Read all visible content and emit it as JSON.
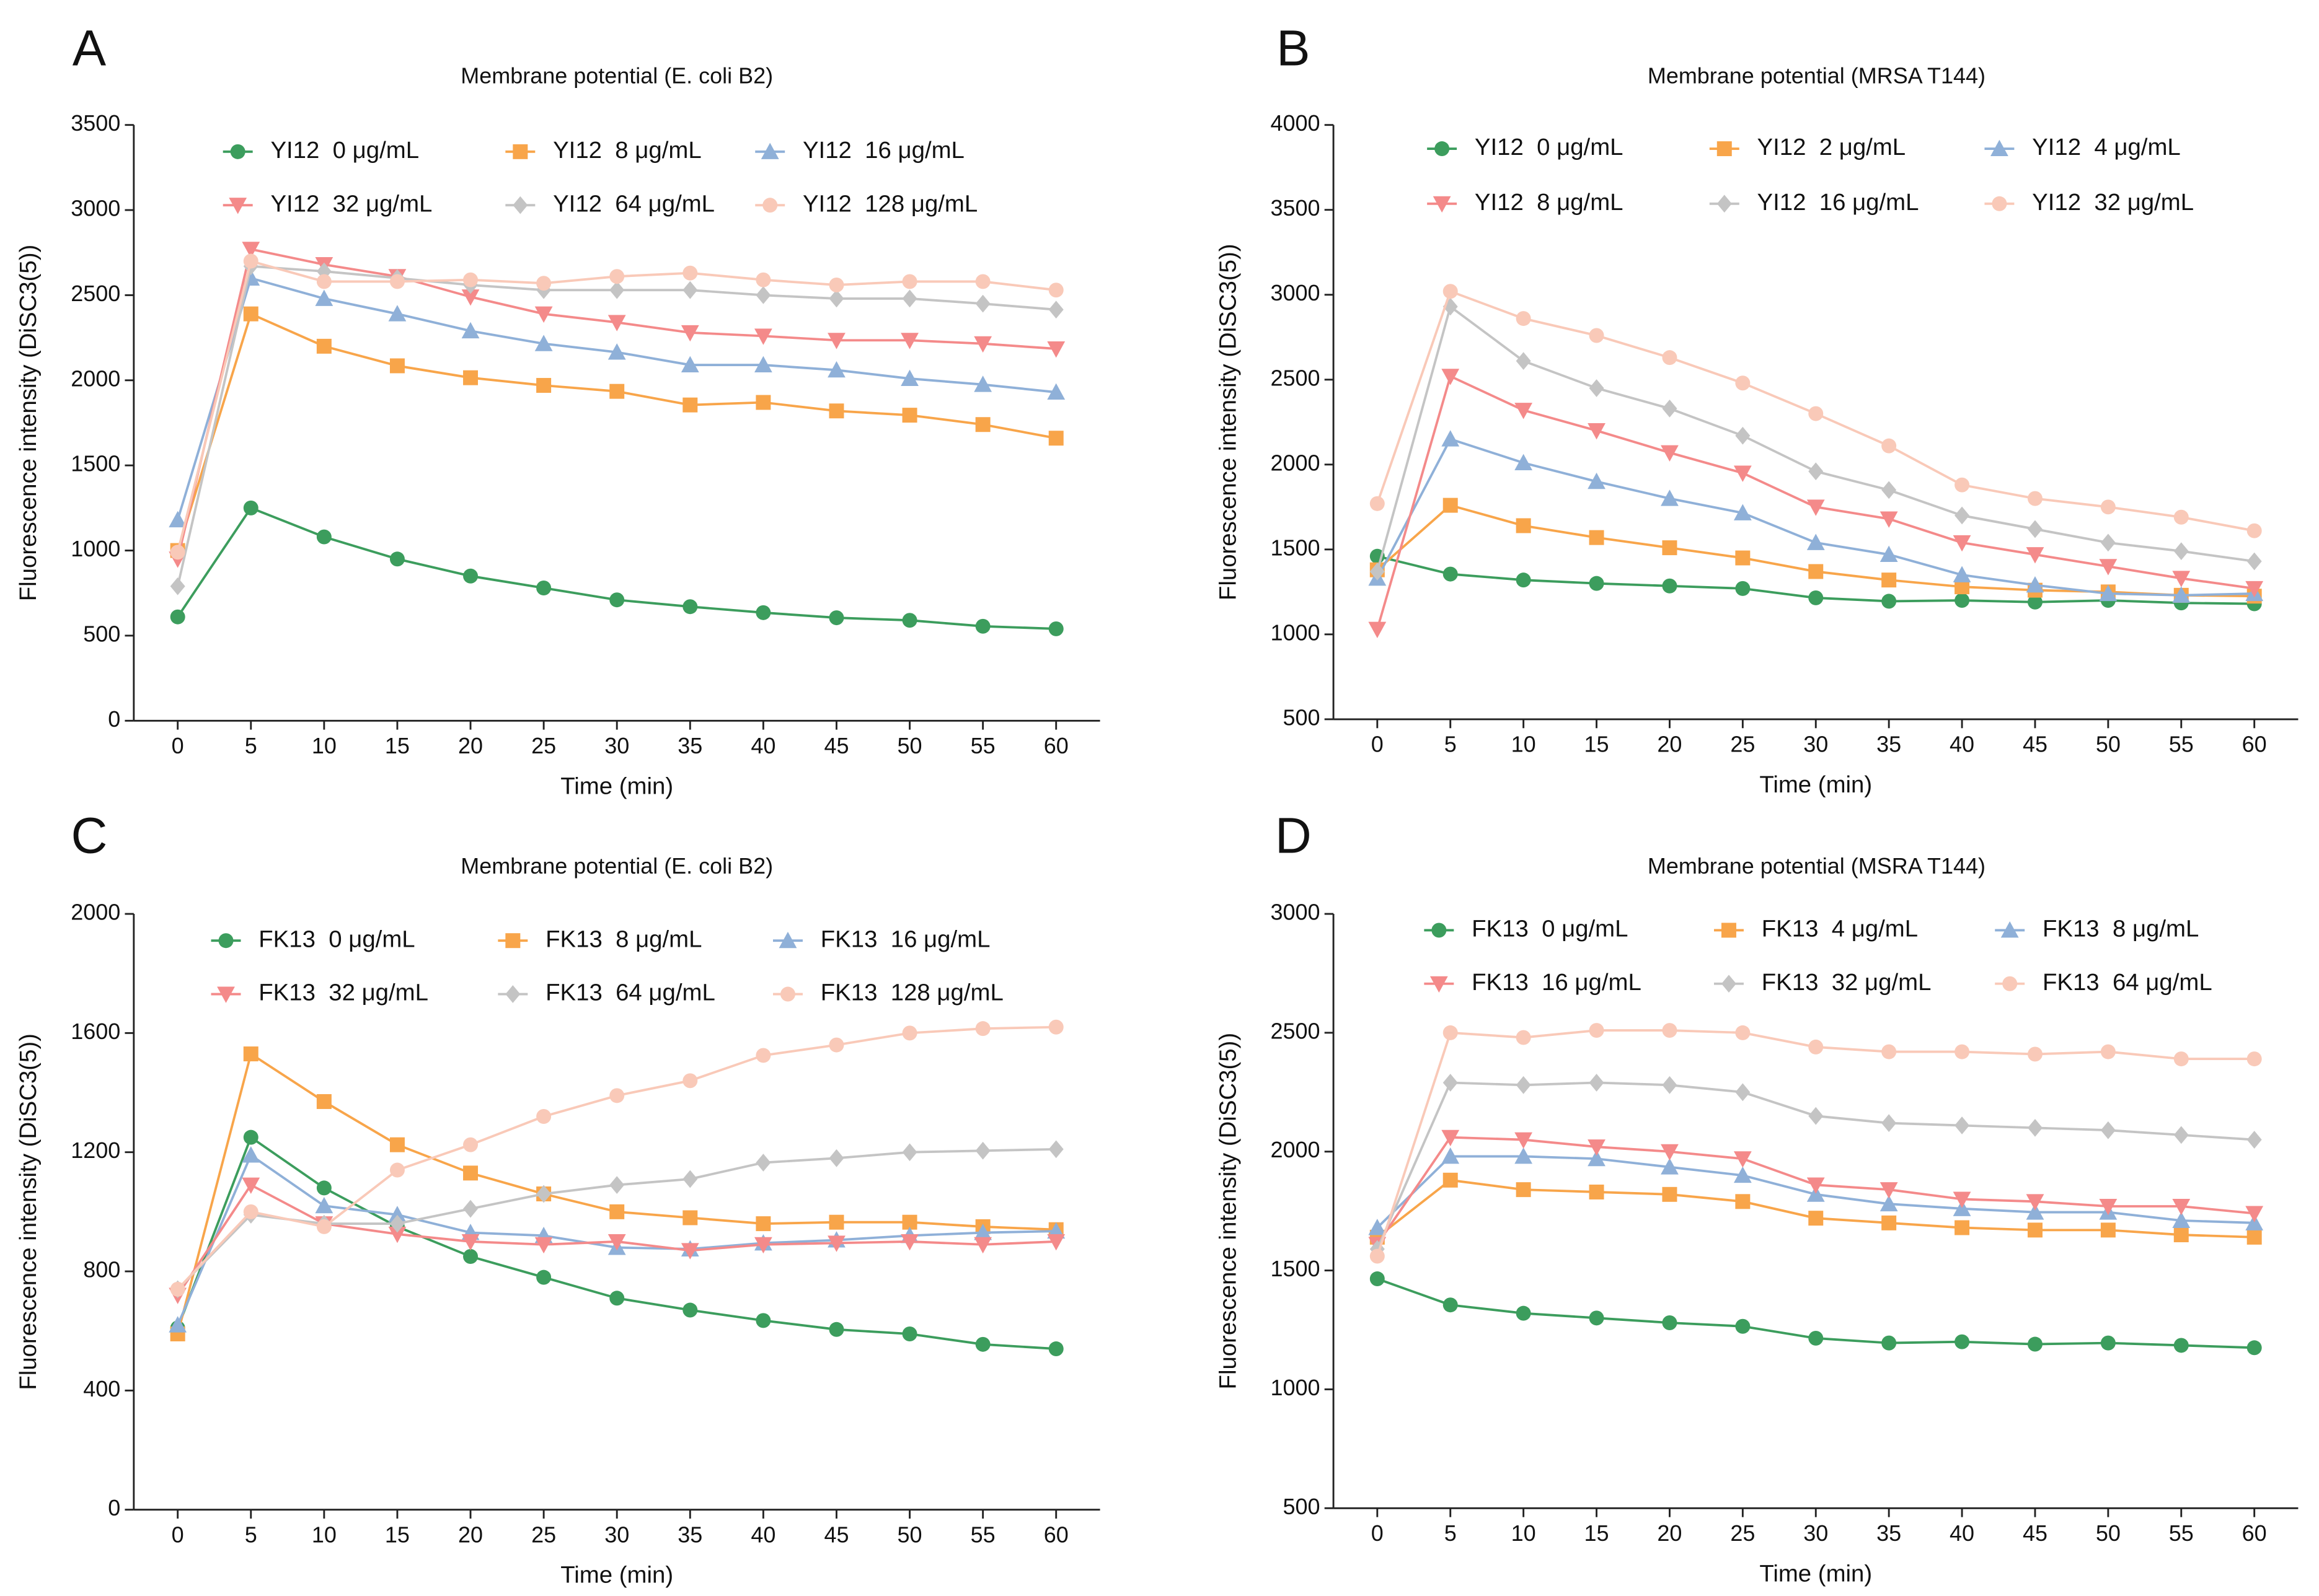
{
  "chart_data": [
    {
      "type": "line",
      "panel": "A",
      "title": "Membrane potential (E. coli B2)",
      "x_label": "Time (min)",
      "y_label": "Fluorescence intensity (DiSC3(5))",
      "x": [
        0,
        5,
        10,
        15,
        20,
        25,
        30,
        35,
        40,
        45,
        50,
        55,
        60
      ],
      "xlim": [
        -3,
        63
      ],
      "xticks": [
        0,
        5,
        10,
        15,
        20,
        25,
        30,
        35,
        40,
        45,
        50,
        55,
        60
      ],
      "ylim": [
        0,
        3500
      ],
      "yticks": [
        0,
        500,
        1000,
        1500,
        2000,
        2500,
        3000,
        3500
      ],
      "series": [
        {
          "name": "YI12  0 μg/mL",
          "color": "#3c9d5d",
          "marker": "circle",
          "values": [
            610,
            1250,
            1080,
            950,
            850,
            780,
            710,
            670,
            635,
            605,
            590,
            555,
            540
          ]
        },
        {
          "name": "YI12  8 μg/mL",
          "color": "#f8a54a",
          "marker": "square",
          "values": [
            1000,
            2390,
            2200,
            2085,
            2015,
            1970,
            1935,
            1855,
            1870,
            1820,
            1795,
            1740,
            1660
          ]
        },
        {
          "name": "YI12  16 μg/mL",
          "color": "#8fb0d8",
          "marker": "triangle-up",
          "values": [
            1180,
            2600,
            2480,
            2390,
            2290,
            2215,
            2165,
            2090,
            2090,
            2060,
            2010,
            1975,
            1930
          ]
        },
        {
          "name": "YI12  32 μg/mL",
          "color": "#f48a8a",
          "marker": "triangle-down",
          "values": [
            950,
            2770,
            2680,
            2610,
            2490,
            2390,
            2340,
            2280,
            2260,
            2235,
            2235,
            2215,
            2185
          ]
        },
        {
          "name": "YI12  64 μg/mL",
          "color": "#c4c4c4",
          "marker": "diamond",
          "values": [
            790,
            2670,
            2640,
            2600,
            2560,
            2530,
            2530,
            2530,
            2500,
            2480,
            2480,
            2450,
            2415
          ]
        },
        {
          "name": "YI12  128 μg/mL",
          "color": "#f9c9b8",
          "marker": "circle",
          "values": [
            990,
            2700,
            2580,
            2580,
            2590,
            2570,
            2610,
            2630,
            2590,
            2560,
            2580,
            2580,
            2530
          ]
        }
      ]
    },
    {
      "type": "line",
      "panel": "B",
      "title": "Membrane potential (MRSA T144)",
      "x_label": "Time (min)",
      "y_label": "Fluorescence intensity (DiSC3(5))",
      "x": [
        0,
        5,
        10,
        15,
        20,
        25,
        30,
        35,
        40,
        45,
        50,
        55,
        60
      ],
      "xlim": [
        -3,
        63
      ],
      "xticks": [
        0,
        5,
        10,
        15,
        20,
        25,
        30,
        35,
        40,
        45,
        50,
        55,
        60
      ],
      "ylim": [
        500,
        4000
      ],
      "yticks": [
        500,
        1000,
        1500,
        2000,
        2500,
        3000,
        3500,
        4000
      ],
      "series": [
        {
          "name": "YI12  0 μg/mL",
          "color": "#3c9d5d",
          "marker": "circle",
          "values": [
            1460,
            1355,
            1320,
            1300,
            1285,
            1270,
            1215,
            1195,
            1200,
            1190,
            1200,
            1185,
            1180
          ]
        },
        {
          "name": "YI12  2 μg/mL",
          "color": "#f8a54a",
          "marker": "square",
          "values": [
            1380,
            1760,
            1640,
            1570,
            1510,
            1450,
            1370,
            1320,
            1280,
            1260,
            1250,
            1230,
            1225
          ]
        },
        {
          "name": "YI12  4 μg/mL",
          "color": "#8fb0d8",
          "marker": "triangle-up",
          "values": [
            1330,
            2150,
            2010,
            1900,
            1800,
            1715,
            1540,
            1470,
            1350,
            1290,
            1240,
            1230,
            1240
          ]
        },
        {
          "name": "YI12  8 μg/mL",
          "color": "#f48a8a",
          "marker": "triangle-down",
          "values": [
            1030,
            2520,
            2320,
            2200,
            2070,
            1950,
            1750,
            1680,
            1540,
            1470,
            1400,
            1330,
            1270
          ]
        },
        {
          "name": "YI12  16 μg/mL",
          "color": "#c4c4c4",
          "marker": "diamond",
          "values": [
            1370,
            2930,
            2610,
            2450,
            2330,
            2170,
            1960,
            1850,
            1700,
            1620,
            1540,
            1490,
            1430
          ]
        },
        {
          "name": "YI12  32 μg/mL",
          "color": "#f9c9b8",
          "marker": "circle",
          "values": [
            1770,
            3020,
            2860,
            2760,
            2630,
            2480,
            2300,
            2110,
            1880,
            1800,
            1750,
            1690,
            1610
          ]
        }
      ]
    },
    {
      "type": "line",
      "panel": "C",
      "title": "Membrane potential (E. coli B2)",
      "x_label": "Time (min)",
      "y_label": "Fluorescence intensity (DiSC3(5))",
      "x": [
        0,
        5,
        10,
        15,
        20,
        25,
        30,
        35,
        40,
        45,
        50,
        55,
        60
      ],
      "xlim": [
        -3,
        63
      ],
      "xticks": [
        0,
        5,
        10,
        15,
        20,
        25,
        30,
        35,
        40,
        45,
        50,
        55,
        60
      ],
      "ylim": [
        0,
        2000
      ],
      "yticks": [
        0,
        400,
        800,
        1200,
        1600,
        2000
      ],
      "series": [
        {
          "name": "FK13  0 μg/mL",
          "color": "#3c9d5d",
          "marker": "circle",
          "values": [
            610,
            1250,
            1080,
            950,
            850,
            780,
            710,
            670,
            635,
            605,
            590,
            555,
            540
          ]
        },
        {
          "name": "FK13  8 μg/mL",
          "color": "#f8a54a",
          "marker": "square",
          "values": [
            590,
            1530,
            1370,
            1225,
            1130,
            1060,
            1000,
            980,
            960,
            965,
            965,
            950,
            940
          ]
        },
        {
          "name": "FK13  16 μg/mL",
          "color": "#8fb0d8",
          "marker": "triangle-up",
          "values": [
            620,
            1190,
            1020,
            990,
            930,
            920,
            880,
            875,
            895,
            905,
            920,
            930,
            935
          ]
        },
        {
          "name": "FK13  32 μg/mL",
          "color": "#f48a8a",
          "marker": "triangle-down",
          "values": [
            720,
            1090,
            960,
            925,
            900,
            890,
            900,
            870,
            890,
            895,
            900,
            890,
            900
          ]
        },
        {
          "name": "FK13  64 μg/mL",
          "color": "#c4c4c4",
          "marker": "diamond",
          "values": [
            740,
            990,
            960,
            960,
            1010,
            1060,
            1090,
            1110,
            1165,
            1180,
            1200,
            1205,
            1210
          ]
        },
        {
          "name": "FK13  128 μg/mL",
          "color": "#f9c9b8",
          "marker": "circle",
          "values": [
            740,
            1000,
            950,
            1140,
            1225,
            1320,
            1390,
            1440,
            1525,
            1560,
            1600,
            1615,
            1620
          ]
        }
      ]
    },
    {
      "type": "line",
      "panel": "D",
      "title": "Membrane potential (MSRA T144)",
      "x_label": "Time (min)",
      "y_label": "Fluorescence intensity (DiSC3(5))",
      "x": [
        0,
        5,
        10,
        15,
        20,
        25,
        30,
        35,
        40,
        45,
        50,
        55,
        60
      ],
      "xlim": [
        -3,
        63
      ],
      "xticks": [
        0,
        5,
        10,
        15,
        20,
        25,
        30,
        35,
        40,
        45,
        50,
        55,
        60
      ],
      "ylim": [
        500,
        3000
      ],
      "yticks": [
        500,
        1000,
        1500,
        2000,
        2500,
        3000
      ],
      "series": [
        {
          "name": "FK13  0 μg/mL",
          "color": "#3c9d5d",
          "marker": "circle",
          "values": [
            1465,
            1355,
            1320,
            1300,
            1280,
            1265,
            1215,
            1195,
            1200,
            1190,
            1195,
            1185,
            1175
          ]
        },
        {
          "name": "FK13  4 μg/mL",
          "color": "#f8a54a",
          "marker": "square",
          "values": [
            1640,
            1880,
            1840,
            1830,
            1820,
            1790,
            1720,
            1700,
            1680,
            1670,
            1670,
            1650,
            1640
          ]
        },
        {
          "name": "FK13  8 μg/mL",
          "color": "#8fb0d8",
          "marker": "triangle-up",
          "values": [
            1680,
            1980,
            1980,
            1970,
            1935,
            1900,
            1820,
            1780,
            1760,
            1745,
            1745,
            1710,
            1700
          ]
        },
        {
          "name": "FK13  16 μg/mL",
          "color": "#f48a8a",
          "marker": "triangle-down",
          "values": [
            1610,
            2060,
            2050,
            2020,
            2000,
            1970,
            1860,
            1840,
            1800,
            1790,
            1770,
            1770,
            1740
          ]
        },
        {
          "name": "FK13  32 μg/mL",
          "color": "#c4c4c4",
          "marker": "diamond",
          "values": [
            1590,
            2290,
            2280,
            2290,
            2280,
            2250,
            2150,
            2120,
            2110,
            2100,
            2090,
            2070,
            2050
          ]
        },
        {
          "name": "FK13  64 μg/mL",
          "color": "#f9c9b8",
          "marker": "circle",
          "values": [
            1560,
            2500,
            2480,
            2510,
            2510,
            2500,
            2440,
            2420,
            2420,
            2410,
            2420,
            2390,
            2390
          ]
        }
      ]
    }
  ]
}
